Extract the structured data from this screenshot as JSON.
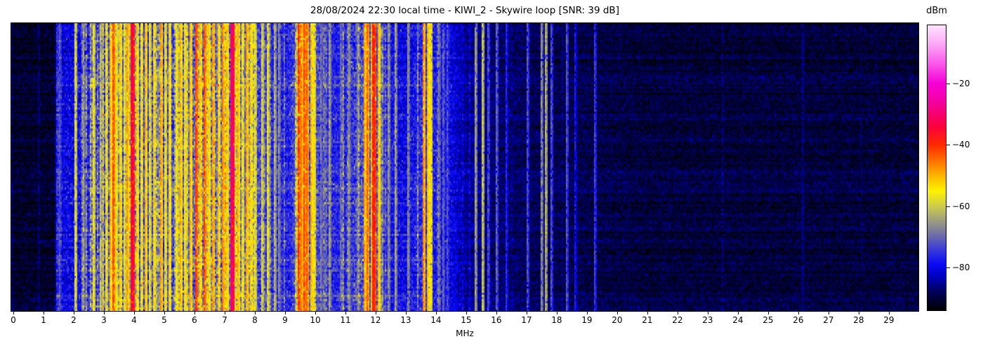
{
  "title": "28/08/2024 22:30 local time - KIWI_2 - Skywire loop [SNR: 39 dB]",
  "axes": {
    "x_label": "MHz",
    "x_ticks": [
      0,
      1,
      2,
      3,
      4,
      5,
      6,
      7,
      8,
      9,
      10,
      11,
      12,
      13,
      14,
      15,
      16,
      17,
      18,
      19,
      20,
      21,
      22,
      23,
      24,
      25,
      26,
      27,
      28,
      29
    ],
    "x_range": [
      -0.07,
      29.98
    ]
  },
  "colorbar": {
    "label": "dBm",
    "ticks": [
      -20,
      -40,
      -60,
      -80
    ],
    "range_top": -1,
    "range_bottom": -94
  },
  "colormap_stops": [
    [
      -94,
      [
        0,
        0,
        0
      ]
    ],
    [
      -88,
      [
        0,
        0,
        90
      ]
    ],
    [
      -83,
      [
        0,
        0,
        190
      ]
    ],
    [
      -79,
      [
        10,
        10,
        245
      ]
    ],
    [
      -74,
      [
        60,
        60,
        215
      ]
    ],
    [
      -69,
      [
        115,
        115,
        165
      ]
    ],
    [
      -64,
      [
        165,
        165,
        118
      ]
    ],
    [
      -60,
      [
        205,
        205,
        75
      ]
    ],
    [
      -55,
      [
        255,
        242,
        0
      ]
    ],
    [
      -50,
      [
        255,
        180,
        0
      ]
    ],
    [
      -45,
      [
        255,
        110,
        0
      ]
    ],
    [
      -40,
      [
        255,
        40,
        0
      ]
    ],
    [
      -34,
      [
        250,
        0,
        60
      ]
    ],
    [
      -27,
      [
        245,
        0,
        150
      ]
    ],
    [
      -20,
      [
        245,
        0,
        215
      ]
    ],
    [
      -13,
      [
        250,
        95,
        235
      ]
    ],
    [
      -6,
      [
        252,
        180,
        248
      ]
    ],
    [
      -1,
      [
        253,
        228,
        252
      ]
    ]
  ],
  "chart_data": {
    "type": "heatmap",
    "title": "28/08/2024 22:30 local time - KIWI_2 - Skywire loop [SNR: 39 dB]",
    "xlabel": "MHz",
    "x_range": [
      -0.07,
      29.98
    ],
    "value_unit": "dBm",
    "value_range": [
      -94,
      -1
    ],
    "snr_db": 39,
    "noise_floor_dbm": [
      [
        0,
        -91
      ],
      [
        1.35,
        -91
      ],
      [
        1.45,
        -80
      ],
      [
        2.0,
        -80
      ],
      [
        2.5,
        -77
      ],
      [
        3.0,
        -74
      ],
      [
        3.5,
        -72
      ],
      [
        4.0,
        -73
      ],
      [
        5.0,
        -74
      ],
      [
        5.5,
        -72
      ],
      [
        6.0,
        -70
      ],
      [
        6.5,
        -69
      ],
      [
        7.0,
        -70
      ],
      [
        7.6,
        -70
      ],
      [
        8.0,
        -73
      ],
      [
        8.6,
        -76
      ],
      [
        9.1,
        -77
      ],
      [
        9.5,
        -70
      ],
      [
        9.9,
        -71
      ],
      [
        10.4,
        -76
      ],
      [
        11.0,
        -77
      ],
      [
        11.6,
        -72
      ],
      [
        12.1,
        -72
      ],
      [
        12.5,
        -78
      ],
      [
        13.0,
        -80
      ],
      [
        13.6,
        -75
      ],
      [
        13.9,
        -77
      ],
      [
        14.5,
        -80
      ],
      [
        15.0,
        -85
      ],
      [
        16.0,
        -87
      ],
      [
        17.0,
        -88
      ],
      [
        19.0,
        -89
      ],
      [
        21.0,
        -90
      ],
      [
        30,
        -90
      ]
    ],
    "activity": [
      [
        0,
        0.02,
        5
      ],
      [
        1.35,
        0.03,
        5
      ],
      [
        1.5,
        0.12,
        8
      ],
      [
        2.4,
        0.25,
        12
      ],
      [
        3.0,
        0.45,
        16
      ],
      [
        4.2,
        0.4,
        15
      ],
      [
        5.0,
        0.38,
        15
      ],
      [
        6.0,
        0.42,
        16
      ],
      [
        7.2,
        0.42,
        16
      ],
      [
        8.0,
        0.3,
        13
      ],
      [
        8.7,
        0.18,
        10
      ],
      [
        9.1,
        0.15,
        10
      ],
      [
        9.5,
        0.35,
        14
      ],
      [
        10.0,
        0.22,
        11
      ],
      [
        10.7,
        0.15,
        9
      ],
      [
        11.5,
        0.28,
        13
      ],
      [
        12.1,
        0.24,
        12
      ],
      [
        12.5,
        0.12,
        8
      ],
      [
        13.6,
        0.2,
        11
      ],
      [
        14.1,
        0.15,
        8
      ],
      [
        14.7,
        0.08,
        6
      ],
      [
        15.6,
        0.05,
        5
      ],
      [
        17,
        0.04,
        5
      ],
      [
        20,
        0.02,
        4
      ],
      [
        30,
        0.02,
        3
      ]
    ],
    "carriers_dbm": [
      [
        1.5,
        -73,
        1
      ],
      [
        2.02,
        -57,
        1
      ],
      [
        2.32,
        -66,
        1
      ],
      [
        2.62,
        -56,
        1
      ],
      [
        2.85,
        -60,
        1
      ],
      [
        3.05,
        -55,
        1
      ],
      [
        3.2,
        -50,
        1
      ],
      [
        3.27,
        -42,
        1
      ],
      [
        3.38,
        -54,
        1
      ],
      [
        3.5,
        -52,
        1
      ],
      [
        3.63,
        -56,
        1
      ],
      [
        3.75,
        -48,
        1
      ],
      [
        3.91,
        -33,
        2
      ],
      [
        4.05,
        -52,
        1
      ],
      [
        4.2,
        -55,
        1
      ],
      [
        4.35,
        -50,
        1
      ],
      [
        4.5,
        -56,
        1
      ],
      [
        4.65,
        -52,
        1
      ],
      [
        4.85,
        -48,
        1
      ],
      [
        5.0,
        -55,
        1
      ],
      [
        5.15,
        -52,
        1
      ],
      [
        5.35,
        -55,
        1
      ],
      [
        5.5,
        -50,
        1
      ],
      [
        5.65,
        -54,
        1
      ],
      [
        5.85,
        -50,
        1
      ],
      [
        6.03,
        -40,
        1
      ],
      [
        6.18,
        -52,
        1
      ],
      [
        6.3,
        -42,
        1
      ],
      [
        6.45,
        -52,
        1
      ],
      [
        6.6,
        -48,
        1
      ],
      [
        6.75,
        -52,
        1
      ],
      [
        6.9,
        -46,
        1
      ],
      [
        7.05,
        -52,
        1
      ],
      [
        7.24,
        -30,
        2
      ],
      [
        7.4,
        -50,
        1
      ],
      [
        7.55,
        -54,
        1
      ],
      [
        7.7,
        -48,
        1
      ],
      [
        7.85,
        -52,
        1
      ],
      [
        8.0,
        -56,
        1
      ],
      [
        8.2,
        -58,
        1
      ],
      [
        8.4,
        -56,
        1
      ],
      [
        8.62,
        -62,
        1
      ],
      [
        8.78,
        -66,
        1
      ],
      [
        9.4,
        -40,
        1
      ],
      [
        9.5,
        -46,
        1
      ],
      [
        9.6,
        -42,
        1
      ],
      [
        9.7,
        -44,
        1
      ],
      [
        9.82,
        -50,
        1
      ],
      [
        9.92,
        -54,
        1
      ],
      [
        10.15,
        -68,
        1
      ],
      [
        10.45,
        -64,
        1
      ],
      [
        10.8,
        -70,
        1
      ],
      [
        11.1,
        -66,
        1
      ],
      [
        11.35,
        -68,
        1
      ],
      [
        11.6,
        -48,
        1
      ],
      [
        11.72,
        -44,
        1
      ],
      [
        11.84,
        -50,
        1
      ],
      [
        11.95,
        -38,
        2
      ],
      [
        12.08,
        -50,
        1
      ],
      [
        12.4,
        -66,
        1
      ],
      [
        12.65,
        -64,
        1
      ],
      [
        13.05,
        -66,
        1
      ],
      [
        13.58,
        -46,
        1
      ],
      [
        13.68,
        -50,
        1
      ],
      [
        13.8,
        -54,
        1
      ],
      [
        14.05,
        -68,
        1
      ],
      [
        14.2,
        -70,
        1
      ],
      [
        14.35,
        -72,
        1
      ],
      [
        15.3,
        -64,
        1
      ],
      [
        15.5,
        -60,
        1
      ],
      [
        15.72,
        -72,
        1
      ],
      [
        16.0,
        -70,
        1
      ],
      [
        16.3,
        -76,
        1
      ],
      [
        17.0,
        -72,
        1
      ],
      [
        17.45,
        -66,
        1
      ],
      [
        17.6,
        -62,
        1
      ],
      [
        17.78,
        -72,
        1
      ],
      [
        18.3,
        -72,
        1
      ],
      [
        18.6,
        -78,
        1
      ],
      [
        19.25,
        -74,
        1
      ],
      [
        26.1,
        -85,
        1
      ]
    ]
  }
}
